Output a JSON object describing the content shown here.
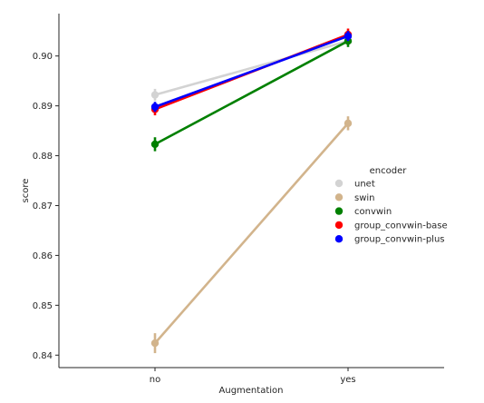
{
  "chart_data": {
    "type": "line",
    "xlabel": "Augmentation",
    "ylabel": "score",
    "categories": [
      "no",
      "yes"
    ],
    "ylim": [
      0.8375,
      0.9085
    ],
    "yticks": [
      0.84,
      0.85,
      0.86,
      0.87,
      0.88,
      0.89,
      0.9
    ],
    "ytick_labels": [
      "0.84",
      "0.85",
      "0.86",
      "0.87",
      "0.88",
      "0.89",
      "0.90"
    ],
    "grid": false,
    "legend": {
      "title": "encoder",
      "placement": "right"
    },
    "series": [
      {
        "name": "unet",
        "color": "#d3d3d3",
        "values": [
          0.8922,
          0.903
        ],
        "err": [
          0.0012,
          0.001
        ]
      },
      {
        "name": "swin",
        "color": "#d2b48c",
        "values": [
          0.8424,
          0.8865
        ],
        "err": [
          0.002,
          0.0014
        ]
      },
      {
        "name": "convwin",
        "color": "#008000",
        "values": [
          0.8823,
          0.903
        ],
        "err": [
          0.0014,
          0.0012
        ]
      },
      {
        "name": "group_convwin-base",
        "color": "#ff0000",
        "values": [
          0.8893,
          0.9043
        ],
        "err": [
          0.0012,
          0.0012
        ]
      },
      {
        "name": "group_convwin-plus",
        "color": "#0000ff",
        "values": [
          0.8898,
          0.904
        ],
        "err": [
          0.001,
          0.001
        ]
      }
    ]
  }
}
